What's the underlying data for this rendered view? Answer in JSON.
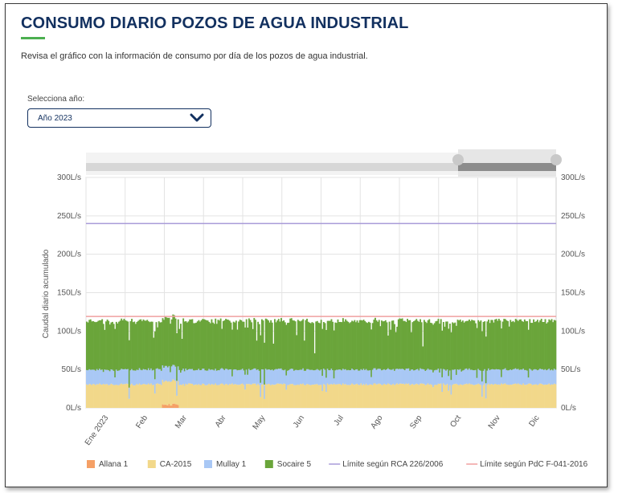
{
  "header": {
    "title": "CONSUMO DIARIO POZOS DE AGUA INDUSTRIAL",
    "subtitle": "Revisa el gráfico con la información de consumo por día de los pozos de agua industrial."
  },
  "filters": {
    "year_label": "Selecciona año:",
    "year_value": "Año 2023",
    "chevron_icon": "chevron-down-icon"
  },
  "colors": {
    "title": "#12305f",
    "accent": "#4caf50",
    "Allana 1": "#f5a066",
    "CA-2015": "#f2d88a",
    "Mullay 1": "#a9c8f5",
    "Socaire 5": "#6aa53a",
    "rca": "#a99bd8",
    "pdc": "#f0a0a0"
  },
  "chart_data": {
    "type": "area",
    "stacked": true,
    "ylabel": "Caudal diario acumulado",
    "ylim": [
      0,
      300
    ],
    "y_ticks": [
      "0L/s",
      "50L/s",
      "100L/s",
      "150L/s",
      "200L/s",
      "250L/s",
      "300L/s"
    ],
    "x_ticks": [
      "Ene 2023",
      "Feb",
      "Mar",
      "Abr",
      "May",
      "Jun",
      "Jul",
      "Ago",
      "Sep",
      "Oct",
      "Nov",
      "Dic"
    ],
    "grid": true,
    "legend_position": "bottom",
    "navigator": true,
    "series": [
      {
        "name": "Allana 1",
        "kind": "stack",
        "typical_value": 0,
        "peak_value": 6,
        "peak_period": "mid Mar"
      },
      {
        "name": "CA-2015",
        "kind": "stack",
        "typical_value": 32
      },
      {
        "name": "Mullay 1",
        "kind": "stack",
        "typical_value": 20
      },
      {
        "name": "Socaire 5",
        "kind": "stack",
        "typical_value": 66
      },
      {
        "name": "Límite según RCA 226/2006",
        "kind": "line",
        "value": 240
      },
      {
        "name": "Límite según PdC F-041-2016",
        "kind": "line",
        "value": 119
      }
    ]
  }
}
